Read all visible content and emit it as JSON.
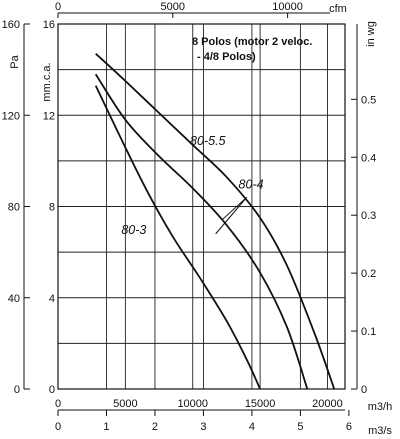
{
  "chart_data": {
    "type": "line",
    "note": [
      "8 Polos (motor 2 veloc.",
      "- 4/8 Polos)"
    ],
    "axes": {
      "left_pa": {
        "unit": "Pa",
        "ticks": [
          0,
          40,
          80,
          120,
          160
        ],
        "range": [
          0,
          160
        ]
      },
      "left_mmca": {
        "unit": "mm.c.a.",
        "ticks": [
          0,
          4,
          8,
          12,
          16
        ],
        "range": [
          0,
          16
        ]
      },
      "right_inwg": {
        "unit": "in wg",
        "ticks": [
          0,
          0.1,
          0.2,
          0.3,
          0.4,
          0.5
        ],
        "range": [
          0,
          0.63
        ]
      },
      "top_cfm": {
        "unit": "cfm",
        "ticks": [
          0,
          5000,
          10000
        ],
        "range": [
          0,
          12500
        ]
      },
      "bottom_m3h": {
        "unit": "m3/h",
        "ticks": [
          0,
          5000,
          10000,
          15000,
          20000
        ],
        "range": [
          0,
          21300
        ]
      },
      "bottom_m3s": {
        "unit": "m3/s",
        "ticks": [
          0,
          1,
          2,
          3,
          4,
          5,
          6
        ],
        "range": [
          0,
          5.92
        ]
      }
    },
    "x_unit": "m3/h",
    "y_unit": "Pa",
    "grid": true,
    "series": [
      {
        "name": "80-5.5",
        "x": [
          2800,
          5000,
          7500,
          10000,
          12500,
          15000,
          17000,
          19000,
          20500
        ],
        "y": [
          147,
          135,
          121,
          107,
          93,
          75,
          54,
          25,
          0
        ]
      },
      {
        "name": "80-4",
        "x": [
          2800,
          5000,
          7500,
          10000,
          12500,
          15000,
          17000,
          18500
        ],
        "y": [
          138,
          118,
          102,
          88,
          72,
          51,
          27,
          0
        ]
      },
      {
        "name": "80-3",
        "x": [
          2800,
          4500,
          6500,
          8500,
          10500,
          12500,
          14000,
          15000
        ],
        "y": [
          133,
          112,
          88,
          67,
          49,
          30,
          13,
          0
        ]
      }
    ]
  }
}
